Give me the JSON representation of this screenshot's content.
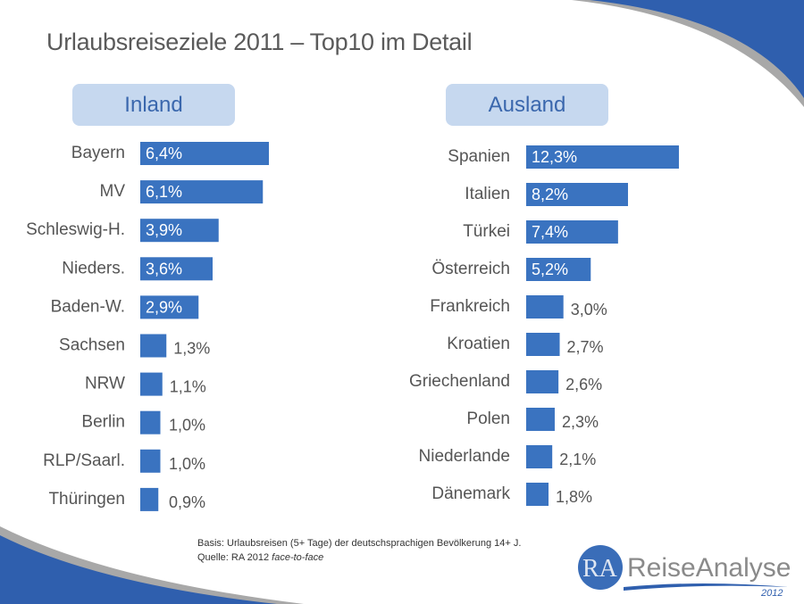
{
  "title": "Urlaubsreiseziele 2011 – Top10 im Detail",
  "colors": {
    "bar": "#3a73c0",
    "accent": "#2f5fae",
    "pill": "#c6d8ef",
    "label_text": "#555555"
  },
  "chart_data": [
    {
      "type": "bar",
      "orientation": "horizontal",
      "title": "Inland",
      "categories": [
        "Bayern",
        "MV",
        "Schleswig-H.",
        "Nieders.",
        "Baden-W.",
        "Sachsen",
        "NRW",
        "Berlin",
        "RLP/Saarl.",
        "Thüringen"
      ],
      "values": [
        6.4,
        6.1,
        3.9,
        3.6,
        2.9,
        1.3,
        1.1,
        1.0,
        1.0,
        0.9
      ],
      "labels": [
        "6,4%",
        "6,1%",
        "3,9%",
        "3,6%",
        "2,9%",
        "1,3%",
        "1,1%",
        "1,0%",
        "1,0%",
        "0,9%"
      ],
      "unit": "%"
    },
    {
      "type": "bar",
      "orientation": "horizontal",
      "title": "Ausland",
      "categories": [
        "Spanien",
        "Italien",
        "Türkei",
        "Österreich",
        "Frankreich",
        "Kroatien",
        "Griechenland",
        "Polen",
        "Niederlande",
        "Dänemark"
      ],
      "values": [
        12.3,
        8.2,
        7.4,
        5.2,
        3.0,
        2.7,
        2.6,
        2.3,
        2.1,
        1.8
      ],
      "labels": [
        "12,3%",
        "8,2%",
        "7,4%",
        "5,2%",
        "3,0%",
        "2,7%",
        "2,6%",
        "2,3%",
        "2,1%",
        "1,8%"
      ],
      "unit": "%"
    }
  ],
  "footnote": {
    "basis": "Basis: Urlaubsreisen (5+ Tage) der deutschsprachigen Bevölkerung 14+ J.",
    "source_prefix": "Quelle: RA 2012 ",
    "source_italic": "face-to-face"
  },
  "logo": {
    "mark": "RA",
    "name": "ReiseAnalyse",
    "year": "2012"
  }
}
